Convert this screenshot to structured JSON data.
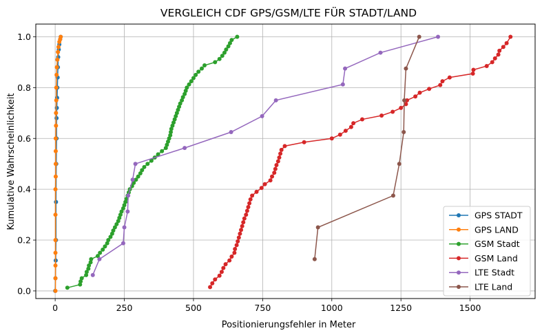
{
  "chart_data": {
    "type": "line",
    "title": "VERGLEICH CDF GPS/GSM/LTE FÜR STADT/LAND",
    "xlabel": "Positionierungsfehler in Meter",
    "ylabel": "Kumulative Wahrscheinlichkeit",
    "xlim": [
      -70,
      1735
    ],
    "ylim": [
      -0.03,
      1.05
    ],
    "xticks": [
      0,
      250,
      500,
      750,
      1000,
      1250,
      1500
    ],
    "yticks": [
      0.0,
      0.2,
      0.4,
      0.6,
      0.8,
      1.0
    ],
    "xtick_labels": [
      "0",
      "250",
      "500",
      "750",
      "1000",
      "1250",
      "1500"
    ],
    "ytick_labels": [
      "0.0",
      "0.2",
      "0.4",
      "0.6",
      "0.8",
      "1.0"
    ],
    "grid": true,
    "legend_position": "lower-right",
    "series": [
      {
        "name": "GPS STADT",
        "color": "#1f77b4",
        "x": [
          0,
          1,
          2,
          3,
          3,
          4,
          5,
          5,
          6,
          7,
          8,
          9,
          10,
          11,
          13,
          15,
          18,
          20
        ],
        "y": [
          0.0,
          0.05,
          0.12,
          0.2,
          0.35,
          0.5,
          0.6,
          0.68,
          0.72,
          0.76,
          0.8,
          0.84,
          0.88,
          0.92,
          0.95,
          0.97,
          0.99,
          1.0
        ]
      },
      {
        "name": "GPS LAND",
        "color": "#ff7f0e",
        "x": [
          1,
          1,
          1,
          1,
          1,
          1,
          1,
          2,
          2,
          2,
          2,
          3,
          3,
          4,
          4,
          5,
          6,
          8,
          10,
          12,
          15,
          18,
          20
        ],
        "y": [
          0.0,
          0.05,
          0.1,
          0.15,
          0.2,
          0.3,
          0.4,
          0.45,
          0.5,
          0.55,
          0.6,
          0.65,
          0.7,
          0.75,
          0.8,
          0.85,
          0.88,
          0.91,
          0.94,
          0.96,
          0.98,
          0.99,
          1.0
        ]
      },
      {
        "name": "GSM Stadt",
        "color": "#2ca02c",
        "x": [
          44,
          90,
          92,
          96,
          112,
          114,
          120,
          122,
          128,
          130,
          154,
          162,
          172,
          180,
          188,
          192,
          200,
          206,
          210,
          216,
          222,
          228,
          232,
          236,
          240,
          246,
          250,
          254,
          258,
          262,
          266,
          270,
          278,
          284,
          292,
          300,
          308,
          314,
          322,
          334,
          348,
          360,
          372,
          386,
          400,
          404,
          408,
          412,
          416,
          418,
          420,
          424,
          428,
          432,
          436,
          440,
          444,
          448,
          452,
          458,
          462,
          468,
          472,
          476,
          484,
          492,
          500,
          508,
          518,
          530,
          540,
          578,
          594,
          604,
          612,
          618,
          626,
          632,
          638,
          658
        ],
        "y": [
          0.0125,
          0.025,
          0.0375,
          0.05,
          0.0625,
          0.075,
          0.0875,
          0.1,
          0.1125,
          0.125,
          0.1375,
          0.15,
          0.1625,
          0.175,
          0.1875,
          0.2,
          0.2125,
          0.225,
          0.2375,
          0.25,
          0.2625,
          0.275,
          0.2875,
          0.3,
          0.3125,
          0.325,
          0.3375,
          0.35,
          0.3625,
          0.375,
          0.3875,
          0.4,
          0.4125,
          0.425,
          0.4375,
          0.45,
          0.4625,
          0.475,
          0.4875,
          0.5,
          0.5125,
          0.525,
          0.5375,
          0.55,
          0.5625,
          0.575,
          0.5875,
          0.6,
          0.6125,
          0.625,
          0.6375,
          0.65,
          0.6625,
          0.675,
          0.6875,
          0.7,
          0.7125,
          0.725,
          0.7375,
          0.75,
          0.7625,
          0.775,
          0.7875,
          0.8,
          0.8125,
          0.825,
          0.8375,
          0.85,
          0.8625,
          0.875,
          0.8875,
          0.9,
          0.9125,
          0.925,
          0.9375,
          0.95,
          0.9625,
          0.975,
          0.9875,
          1.0
        ]
      },
      {
        "name": "GSM Land",
        "color": "#d62728",
        "x": [
          560,
          568,
          578,
          594,
          602,
          608,
          616,
          630,
          638,
          648,
          650,
          656,
          660,
          664,
          668,
          672,
          676,
          680,
          684,
          690,
          694,
          698,
          702,
          706,
          712,
          728,
          746,
          758,
          778,
          784,
          792,
          796,
          800,
          806,
          810,
          814,
          818,
          830,
          900,
          1000,
          1030,
          1050,
          1070,
          1078,
          1110,
          1180,
          1220,
          1250,
          1268,
          1272,
          1302,
          1318,
          1352,
          1392,
          1400,
          1426,
          1510,
          1512,
          1560,
          1580,
          1590,
          1602,
          1606,
          1620,
          1632,
          1646
        ],
        "y": [
          0.015,
          0.03,
          0.045,
          0.06,
          0.075,
          0.09,
          0.105,
          0.12,
          0.135,
          0.15,
          0.165,
          0.18,
          0.195,
          0.21,
          0.225,
          0.24,
          0.255,
          0.27,
          0.285,
          0.3,
          0.315,
          0.33,
          0.345,
          0.36,
          0.375,
          0.39,
          0.405,
          0.42,
          0.435,
          0.45,
          0.465,
          0.48,
          0.495,
          0.51,
          0.525,
          0.54,
          0.555,
          0.57,
          0.585,
          0.6,
          0.615,
          0.63,
          0.645,
          0.66,
          0.675,
          0.69,
          0.705,
          0.72,
          0.735,
          0.75,
          0.765,
          0.78,
          0.795,
          0.81,
          0.825,
          0.84,
          0.855,
          0.87,
          0.885,
          0.9,
          0.915,
          0.93,
          0.945,
          0.96,
          0.975,
          1.0
        ]
      },
      {
        "name": "LTE Stadt",
        "color": "#9467bd",
        "x": [
          136,
          160,
          246,
          250,
          262,
          264,
          280,
          290,
          468,
          636,
          748,
          798,
          1040,
          1048,
          1176,
          1384
        ],
        "y": [
          0.0625,
          0.125,
          0.1875,
          0.25,
          0.3125,
          0.375,
          0.4375,
          0.5,
          0.5625,
          0.625,
          0.6875,
          0.75,
          0.8125,
          0.875,
          0.9375,
          1.0
        ]
      },
      {
        "name": "LTE Land",
        "color": "#8c564b",
        "x": [
          938,
          950,
          1222,
          1244,
          1260,
          1262,
          1268,
          1316
        ],
        "y": [
          0.125,
          0.25,
          0.375,
          0.5,
          0.625,
          0.75,
          0.875,
          1.0
        ]
      }
    ]
  }
}
